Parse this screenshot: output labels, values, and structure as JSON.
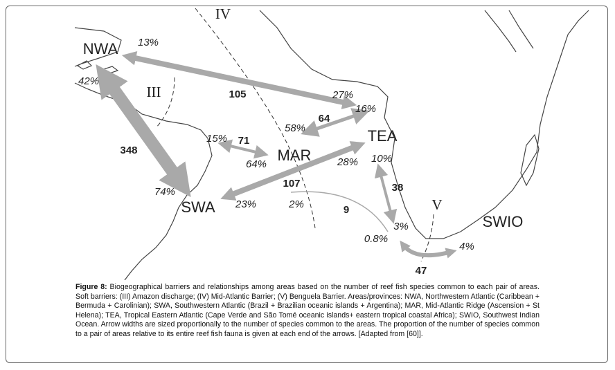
{
  "figure": {
    "labels": {
      "barrier_iv": "IV",
      "barrier_iii": "III",
      "barrier_v": "V",
      "nwa": "NWA",
      "tea": "TEA",
      "mar": "MAR",
      "swa": "SWA",
      "swio": "SWIO",
      "nwa_tea_count": "105",
      "nwa_swa_count": "348",
      "mar_tea_count": "64",
      "swa_mar_count": "71",
      "tea_swa_count": "107",
      "tea_swio_count": "38",
      "mar_swio_count": "9",
      "swa_swio_count": "47",
      "nwa_pct_tea": "13%",
      "nwa_pct_swa": "42%",
      "tea_pct_nwa": "27%",
      "tea_pct_mar": "16%",
      "mar_pct_tea": "58%",
      "swa_pct_mar": "15%",
      "mar_pct_swa": "64%",
      "tea_pct_swa": "28%",
      "tea_pct_swio": "10%",
      "swa_pct_nwa": "74%",
      "swa_pct_tea": "23%",
      "mar_pct_swio": "2%",
      "swio_pct_tea": "3%",
      "swio_pct_mar": "0.8%",
      "swio_pct_swa": "4%"
    },
    "caption": {
      "label": "Figure 8:",
      "text": "Biogeographical barriers and relationships among areas based on the number of reef fish species common to each pair of areas. Soft barriers: (III) Amazon discharge; (IV) Mid-Atlantic Barrier; (V) Benguela Barrier. Areas/provinces: NWA, Northwestern Atlantic (Caribbean + Bermuda + Carolinian); SWA, Southwestern Atlantic (Brazil + Brazilian oceanic islands + Argentina); MAR, Mid-Atlantic Ridge (Ascension + St Helena); TEA, Tropical Eastern Atlantic (Cape Verde and São Tomé oceanic islands+ eastern tropical coastal Africa); SWIO, Southwest Indian Ocean. Arrow widths are sized proportionally to the number of species common to the areas. The proportion of the number of species common to a pair of areas relative to its entire reef fish fauna is given at each end of the arrows. [Adapted from [60]]."
    }
  }
}
